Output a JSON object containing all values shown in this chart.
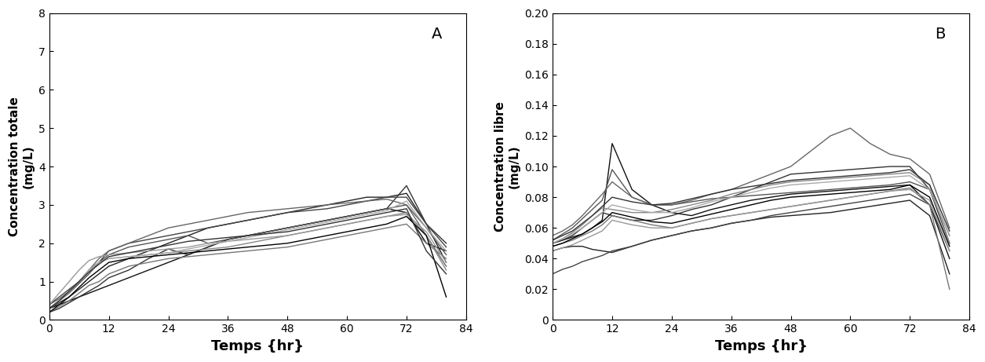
{
  "panel_A": {
    "label": "A",
    "ylabel_line1": "Concentration totale",
    "ylabel_line2": "(mg/L)",
    "xlabel": "Temps {hr}",
    "ylim": [
      0,
      8
    ],
    "yticks": [
      0,
      1,
      2,
      3,
      4,
      5,
      6,
      7,
      8
    ],
    "xlim": [
      0,
      84
    ],
    "xticks": [
      0,
      12,
      24,
      36,
      48,
      60,
      72,
      84
    ],
    "times": [
      0,
      2,
      4,
      6,
      8,
      10,
      12,
      16,
      20,
      24,
      28,
      32,
      36,
      40,
      44,
      48,
      52,
      56,
      60,
      64,
      68,
      72,
      76,
      80
    ],
    "patients": [
      [
        0.3,
        0.4,
        0.5,
        0.6,
        0.7,
        0.8,
        0.9,
        1.1,
        1.3,
        1.5,
        1.7,
        1.9,
        2.1,
        2.2,
        2.3,
        2.4,
        2.5,
        2.6,
        2.7,
        2.8,
        2.9,
        2.8,
        2.0,
        1.8
      ],
      [
        0.3,
        0.45,
        0.6,
        0.8,
        1.0,
        1.2,
        1.4,
        1.6,
        1.8,
        2.0,
        2.2,
        2.4,
        2.5,
        2.6,
        2.7,
        2.8,
        2.9,
        3.0,
        3.1,
        3.2,
        3.2,
        3.3,
        2.5,
        1.5
      ],
      [
        0.2,
        0.3,
        0.45,
        0.6,
        0.75,
        0.9,
        1.1,
        1.3,
        1.6,
        1.85,
        1.7,
        1.9,
        2.1,
        2.2,
        2.3,
        2.4,
        2.5,
        2.6,
        2.7,
        2.8,
        2.9,
        3.5,
        2.5,
        2.0
      ],
      [
        0.4,
        0.6,
        0.8,
        1.0,
        1.3,
        1.5,
        1.8,
        2.0,
        2.1,
        2.2,
        2.3,
        2.4,
        2.5,
        2.6,
        2.7,
        2.8,
        2.85,
        2.9,
        3.0,
        3.1,
        3.2,
        3.2,
        2.5,
        1.9
      ],
      [
        0.3,
        0.5,
        0.7,
        0.95,
        1.2,
        1.5,
        1.7,
        1.9,
        2.0,
        2.1,
        2.2,
        2.0,
        2.1,
        2.2,
        2.3,
        2.4,
        2.5,
        2.6,
        2.7,
        2.8,
        2.9,
        3.0,
        2.4,
        1.7
      ],
      [
        0.4,
        0.55,
        0.75,
        1.0,
        1.3,
        1.6,
        1.8,
        2.0,
        2.2,
        2.4,
        2.5,
        2.6,
        2.7,
        2.8,
        2.85,
        2.9,
        2.95,
        3.0,
        3.05,
        3.1,
        3.15,
        3.0,
        2.2,
        1.4
      ],
      [
        0.2,
        0.35,
        0.5,
        0.7,
        0.9,
        1.0,
        1.2,
        1.4,
        1.5,
        1.6,
        1.65,
        1.7,
        1.75,
        1.8,
        1.85,
        1.9,
        2.0,
        2.1,
        2.2,
        2.3,
        2.4,
        2.5,
        2.0,
        1.6
      ],
      [
        0.3,
        0.5,
        0.7,
        1.0,
        1.3,
        1.5,
        1.6,
        1.65,
        1.7,
        1.75,
        1.8,
        1.85,
        1.9,
        2.0,
        2.1,
        2.2,
        2.3,
        2.4,
        2.5,
        2.6,
        2.7,
        2.8,
        2.2,
        1.3
      ],
      [
        0.4,
        0.7,
        1.0,
        1.3,
        1.55,
        1.65,
        1.7,
        1.75,
        1.8,
        1.85,
        1.9,
        2.0,
        2.05,
        2.1,
        2.15,
        2.2,
        2.3,
        2.4,
        2.5,
        2.6,
        2.7,
        2.75,
        2.3,
        1.5
      ],
      [
        0.3,
        0.5,
        0.75,
        1.0,
        1.3,
        1.5,
        1.6,
        1.65,
        1.7,
        1.75,
        1.85,
        1.95,
        2.05,
        2.15,
        2.25,
        2.35,
        2.45,
        2.55,
        2.65,
        2.75,
        2.85,
        3.1,
        2.4,
        1.8
      ],
      [
        0.2,
        0.4,
        0.6,
        0.85,
        1.1,
        1.3,
        1.5,
        1.6,
        1.65,
        1.7,
        1.75,
        1.8,
        1.85,
        1.9,
        1.95,
        2.0,
        2.1,
        2.2,
        2.3,
        2.4,
        2.5,
        2.7,
        2.2,
        0.6
      ],
      [
        0.3,
        0.5,
        0.75,
        1.0,
        1.25,
        1.45,
        1.65,
        1.75,
        1.85,
        1.95,
        2.05,
        2.1,
        2.15,
        2.2,
        2.25,
        2.3,
        2.4,
        2.5,
        2.6,
        2.7,
        2.8,
        2.9,
        1.8,
        1.2
      ]
    ]
  },
  "panel_B": {
    "label": "B",
    "ylabel_line1": "Concentration libre",
    "ylabel_line2": "(mg/L)",
    "xlabel": "Temps {hr}",
    "ylim": [
      0,
      0.2
    ],
    "yticks": [
      0,
      0.02,
      0.04,
      0.06,
      0.08,
      0.1,
      0.12,
      0.14,
      0.16,
      0.18,
      0.2
    ],
    "xlim": [
      0,
      84
    ],
    "xticks": [
      0,
      12,
      24,
      36,
      48,
      60,
      72,
      84
    ],
    "times": [
      0,
      2,
      4,
      6,
      8,
      10,
      12,
      16,
      20,
      24,
      28,
      32,
      36,
      40,
      44,
      48,
      52,
      56,
      60,
      64,
      68,
      72,
      76,
      80
    ],
    "patients": [
      [
        0.05,
        0.052,
        0.054,
        0.056,
        0.06,
        0.065,
        0.115,
        0.085,
        0.075,
        0.07,
        0.068,
        0.072,
        0.075,
        0.078,
        0.08,
        0.082,
        0.083,
        0.084,
        0.085,
        0.086,
        0.087,
        0.088,
        0.075,
        0.04
      ],
      [
        0.045,
        0.047,
        0.048,
        0.048,
        0.046,
        0.045,
        0.044,
        0.048,
        0.052,
        0.055,
        0.058,
        0.06,
        0.063,
        0.065,
        0.067,
        0.068,
        0.069,
        0.07,
        0.072,
        0.074,
        0.076,
        0.078,
        0.068,
        0.03
      ],
      [
        0.05,
        0.052,
        0.055,
        0.06,
        0.065,
        0.07,
        0.068,
        0.065,
        0.065,
        0.068,
        0.072,
        0.075,
        0.08,
        0.085,
        0.09,
        0.095,
        0.096,
        0.097,
        0.098,
        0.099,
        0.1,
        0.1,
        0.085,
        0.05
      ],
      [
        0.03,
        0.033,
        0.035,
        0.038,
        0.04,
        0.042,
        0.045,
        0.048,
        0.052,
        0.055,
        0.058,
        0.06,
        0.063,
        0.065,
        0.068,
        0.07,
        0.072,
        0.074,
        0.076,
        0.078,
        0.08,
        0.082,
        0.075,
        0.045
      ],
      [
        0.052,
        0.056,
        0.06,
        0.066,
        0.072,
        0.078,
        0.098,
        0.08,
        0.075,
        0.075,
        0.077,
        0.079,
        0.08,
        0.081,
        0.082,
        0.083,
        0.084,
        0.085,
        0.086,
        0.087,
        0.088,
        0.09,
        0.085,
        0.055
      ],
      [
        0.055,
        0.058,
        0.062,
        0.068,
        0.075,
        0.082,
        0.09,
        0.08,
        0.075,
        0.075,
        0.078,
        0.082,
        0.085,
        0.09,
        0.095,
        0.1,
        0.11,
        0.12,
        0.125,
        0.115,
        0.108,
        0.105,
        0.095,
        0.06
      ],
      [
        0.048,
        0.05,
        0.052,
        0.055,
        0.058,
        0.062,
        0.068,
        0.065,
        0.062,
        0.06,
        0.063,
        0.066,
        0.068,
        0.07,
        0.072,
        0.074,
        0.076,
        0.078,
        0.08,
        0.082,
        0.084,
        0.086,
        0.075,
        0.02
      ],
      [
        0.05,
        0.053,
        0.057,
        0.062,
        0.068,
        0.073,
        0.072,
        0.07,
        0.07,
        0.072,
        0.075,
        0.078,
        0.082,
        0.085,
        0.088,
        0.09,
        0.091,
        0.092,
        0.093,
        0.094,
        0.095,
        0.096,
        0.088,
        0.05
      ],
      [
        0.045,
        0.047,
        0.049,
        0.052,
        0.055,
        0.058,
        0.065,
        0.062,
        0.06,
        0.06,
        0.063,
        0.066,
        0.068,
        0.07,
        0.072,
        0.074,
        0.076,
        0.078,
        0.08,
        0.082,
        0.084,
        0.085,
        0.078,
        0.045
      ],
      [
        0.05,
        0.053,
        0.056,
        0.06,
        0.065,
        0.07,
        0.075,
        0.072,
        0.07,
        0.07,
        0.073,
        0.077,
        0.08,
        0.083,
        0.086,
        0.088,
        0.089,
        0.09,
        0.091,
        0.092,
        0.093,
        0.094,
        0.085,
        0.055
      ],
      [
        0.048,
        0.05,
        0.053,
        0.056,
        0.06,
        0.064,
        0.07,
        0.067,
        0.064,
        0.063,
        0.066,
        0.069,
        0.072,
        0.075,
        0.078,
        0.08,
        0.081,
        0.082,
        0.083,
        0.084,
        0.085,
        0.088,
        0.08,
        0.048
      ],
      [
        0.052,
        0.055,
        0.058,
        0.063,
        0.068,
        0.074,
        0.08,
        0.077,
        0.075,
        0.076,
        0.079,
        0.082,
        0.085,
        0.087,
        0.089,
        0.091,
        0.092,
        0.093,
        0.094,
        0.095,
        0.096,
        0.098,
        0.088,
        0.058
      ]
    ]
  },
  "line_colors": [
    "#111111",
    "#222222",
    "#333333",
    "#444444",
    "#555555",
    "#666666",
    "#777777",
    "#888888",
    "#999999",
    "#aaaaaa",
    "#000000",
    "#333333"
  ],
  "line_width": 1.0,
  "background_color": "#ffffff",
  "label_fontsize": 11,
  "tick_fontsize": 10,
  "panel_label_fontsize": 14
}
